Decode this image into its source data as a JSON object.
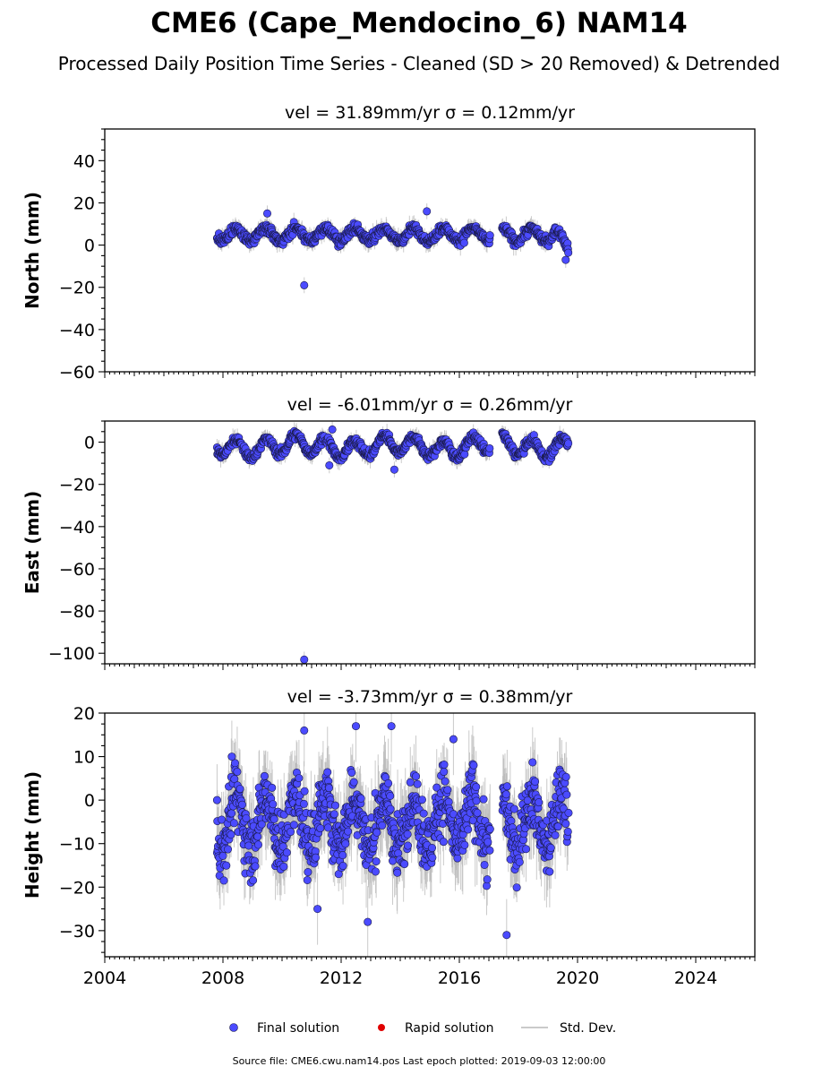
{
  "title": "CME6 (Cape_Mendocino_6) NAM14",
  "subtitle": "Processed Daily Position Time Series - Cleaned (SD > 20 Removed) & Detrended",
  "colors": {
    "final": "#4b4bff",
    "final_edge": "#1a1a4a",
    "rapid": "#e00000",
    "stddev": "#b8b8b8",
    "axis": "#000000"
  },
  "legend": {
    "final_label": "Final solution",
    "rapid_label": "Rapid solution",
    "stddev_label": "Std. Dev."
  },
  "source_text": "Source file: CME6.cwu.nam14.pos  Last epoch plotted: 2019-09-03 12:00:00",
  "chart_data": [
    {
      "type": "scatter",
      "component": "north",
      "title": "vel = 31.89mm/yr   σ = 0.12mm/yr",
      "ylabel": "North (mm)",
      "xlim": [
        2004.0,
        2026.0
      ],
      "ylim": [
        -60,
        55
      ],
      "yticks": [
        40,
        20,
        0,
        -20,
        -40,
        -60
      ],
      "xticks": [
        2004,
        2008,
        2012,
        2016,
        2020,
        2024
      ],
      "show_xtick_labels": false,
      "series_summary": {
        "x_range": [
          2007.8,
          2019.7
        ],
        "gaps": [
          [
            2017.05,
            2017.45
          ]
        ],
        "typical_range": [
          -2,
          10
        ],
        "seasonal_amplitude": 3,
        "baseline": 5
      },
      "notable_points": [
        {
          "x": 2010.75,
          "y": -19
        },
        {
          "x": 2009.5,
          "y": 15
        },
        {
          "x": 2014.9,
          "y": 16
        },
        {
          "x": 2019.6,
          "y": -7
        }
      ]
    },
    {
      "type": "scatter",
      "component": "east",
      "title": "vel = -6.01mm/yr   σ = 0.26mm/yr",
      "ylabel": "East (mm)",
      "xlim": [
        2004.0,
        2026.0
      ],
      "ylim": [
        -105,
        10
      ],
      "yticks": [
        0,
        -20,
        -40,
        -60,
        -80,
        -100
      ],
      "xticks": [
        2004,
        2008,
        2012,
        2016,
        2020,
        2024
      ],
      "show_xtick_labels": false,
      "series_summary": {
        "x_range": [
          2007.8,
          2019.7
        ],
        "gaps": [
          [
            2017.05,
            2017.45
          ]
        ],
        "typical_range": [
          -12,
          4
        ],
        "seasonal_amplitude": 4,
        "baseline": -2
      },
      "notable_points": [
        {
          "x": 2010.75,
          "y": -103
        },
        {
          "x": 2011.7,
          "y": 6
        },
        {
          "x": 2011.6,
          "y": -11
        },
        {
          "x": 2013.8,
          "y": -13
        }
      ]
    },
    {
      "type": "scatter",
      "component": "height",
      "title": "vel = -3.73mm/yr   σ = 0.38mm/yr",
      "ylabel": "Height (mm)",
      "xlim": [
        2004.0,
        2026.0
      ],
      "ylim": [
        -36,
        20
      ],
      "yticks": [
        20,
        10,
        0,
        -10,
        -20,
        -30
      ],
      "xticks": [
        2004,
        2008,
        2012,
        2016,
        2020,
        2024
      ],
      "xtick_labels": [
        "2004",
        "2008",
        "2012",
        "2016",
        "2020",
        "2024"
      ],
      "show_xtick_labels": true,
      "series_summary": {
        "x_range": [
          2007.8,
          2019.7
        ],
        "gaps": [
          [
            2017.05,
            2017.45
          ]
        ],
        "typical_range": [
          -20,
          8
        ],
        "seasonal_amplitude": 6,
        "baseline": -5
      },
      "notable_points": [
        {
          "x": 2010.75,
          "y": 16
        },
        {
          "x": 2012.5,
          "y": 17
        },
        {
          "x": 2013.7,
          "y": 17
        },
        {
          "x": 2015.8,
          "y": 14
        },
        {
          "x": 2012.9,
          "y": -28
        },
        {
          "x": 2017.6,
          "y": -31
        },
        {
          "x": 2011.2,
          "y": -25
        },
        {
          "x": 2007.8,
          "y": 0
        },
        {
          "x": 2008.3,
          "y": 10
        }
      ]
    }
  ]
}
